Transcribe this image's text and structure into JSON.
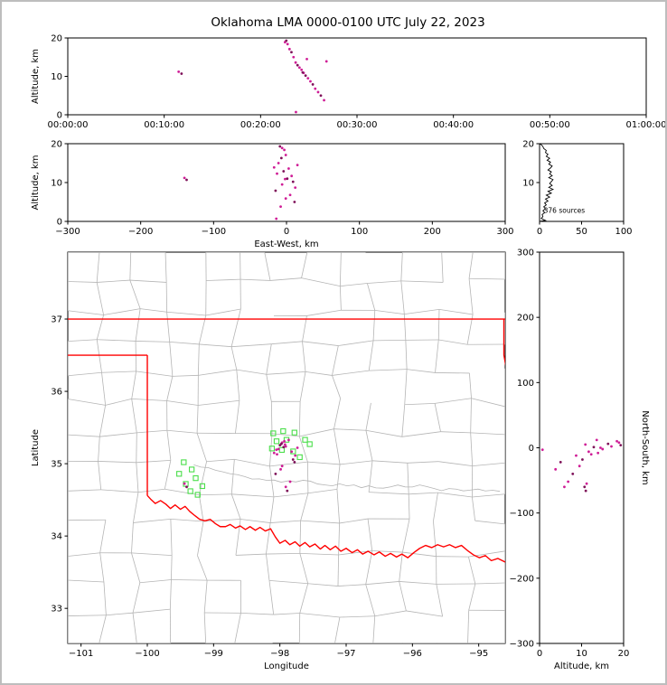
{
  "title": "Oklahoma LMA 0000-0100 UTC July 22, 2023",
  "colors": {
    "source_primary": "#cf1d96",
    "source_dark": "#7e1058",
    "station": "#4ade4a",
    "state_border": "#ff0000",
    "county_line": "#b5b5b5",
    "river_line": "#b5b5b5",
    "histogram_line": "#000000",
    "axis": "#000000",
    "figure_border": "#bdbdbd"
  },
  "chart_data": [
    {
      "id": "time_height",
      "type": "scatter",
      "xlabel": "",
      "ylabel": "Altitude, km",
      "xlim": [
        0,
        3600
      ],
      "ylim": [
        0,
        20
      ],
      "xticks": [
        {
          "v": 0,
          "l": "00:00:00"
        },
        {
          "v": 600,
          "l": "00:10:00"
        },
        {
          "v": 1200,
          "l": "00:20:00"
        },
        {
          "v": 1800,
          "l": "00:30:00"
        },
        {
          "v": 2400,
          "l": "00:40:00"
        },
        {
          "v": 3000,
          "l": "00:50:00"
        },
        {
          "v": 3600,
          "l": "01:00:00"
        }
      ],
      "yticks": [
        {
          "v": 0,
          "l": "0"
        },
        {
          "v": 10,
          "l": "10"
        },
        {
          "v": 20,
          "l": "20"
        }
      ],
      "x_field": "t",
      "y_field": "alt"
    },
    {
      "id": "ew_height",
      "type": "scatter",
      "xlabel": "East-West, km",
      "ylabel": "Altitude, km",
      "xlim": [
        -300,
        300
      ],
      "ylim": [
        0,
        20
      ],
      "xticks": [
        {
          "v": -300,
          "l": "−300"
        },
        {
          "v": -200,
          "l": "−200"
        },
        {
          "v": -100,
          "l": "−100"
        },
        {
          "v": 0,
          "l": "0"
        },
        {
          "v": 100,
          "l": "100"
        },
        {
          "v": 200,
          "l": "200"
        },
        {
          "v": 300,
          "l": "300"
        }
      ],
      "yticks": [
        {
          "v": 0,
          "l": "0"
        },
        {
          "v": 10,
          "l": "10"
        },
        {
          "v": 20,
          "l": "20"
        }
      ],
      "x_field": "ew",
      "y_field": "alt"
    },
    {
      "id": "alt_histogram",
      "type": "line",
      "xlabel": "",
      "ylabel": "",
      "xlim": [
        0,
        100
      ],
      "ylim": [
        0,
        20
      ],
      "xticks": [
        {
          "v": 0,
          "l": "0"
        },
        {
          "v": 50,
          "l": "50"
        },
        {
          "v": 100,
          "l": "100"
        }
      ],
      "yticks": [
        {
          "v": 10,
          "l": "10"
        },
        {
          "v": 20,
          "l": "20"
        }
      ],
      "bin_km": 0.5,
      "counts": [
        7,
        2,
        4,
        3,
        6,
        4,
        7,
        5,
        8,
        6,
        10,
        7,
        12,
        8,
        14,
        10,
        16,
        11,
        15,
        12,
        14,
        16,
        11,
        15,
        12,
        14,
        10,
        13,
        15,
        11,
        13,
        9,
        12,
        8,
        10,
        7,
        8,
        5,
        4,
        2
      ],
      "annotation": {
        "text": "376 sources",
        "x": 5,
        "y": 2.2
      }
    },
    {
      "id": "plan_view",
      "type": "scatter",
      "xlabel": "Longitude",
      "ylabel": "Latitude",
      "xlim": [
        -101.2,
        -94.6
      ],
      "ylim": [
        32.515,
        37.925
      ],
      "xticks": [
        {
          "v": -101,
          "l": "−101"
        },
        {
          "v": -100,
          "l": "−100"
        },
        {
          "v": -99,
          "l": "−99"
        },
        {
          "v": -98,
          "l": "−98"
        },
        {
          "v": -97,
          "l": "−97"
        },
        {
          "v": -96,
          "l": "−96"
        },
        {
          "v": -95,
          "l": "−95"
        }
      ],
      "yticks": [
        {
          "v": 33,
          "l": "33"
        },
        {
          "v": 34,
          "l": "34"
        },
        {
          "v": 35,
          "l": "35"
        },
        {
          "v": 36,
          "l": "36"
        },
        {
          "v": 37,
          "l": "37"
        }
      ],
      "network_center": {
        "lon": -97.9,
        "lat": 35.22
      },
      "km_per_deg_lon": 90.94,
      "km_per_deg_lat": 110.9
    },
    {
      "id": "ns_height",
      "type": "scatter",
      "xlabel": "Altitude, km",
      "ylabel": "North-South, km",
      "ylabel_side": "right",
      "xlim": [
        0,
        20
      ],
      "ylim": [
        -300,
        300
      ],
      "xticks": [
        {
          "v": 0,
          "l": "0"
        },
        {
          "v": 10,
          "l": "10"
        },
        {
          "v": 20,
          "l": "20"
        }
      ],
      "yticks": [
        {
          "v": 300,
          "l": "300"
        },
        {
          "v": 200,
          "l": "200"
        },
        {
          "v": 100,
          "l": "100"
        },
        {
          "v": 0,
          "l": "0"
        },
        {
          "v": -100,
          "l": "−100"
        },
        {
          "v": -200,
          "l": "−200"
        },
        {
          "v": -300,
          "l": "−300"
        }
      ],
      "x_field": "alt",
      "y_field": "ns"
    }
  ],
  "sources": [
    {
      "t": 690,
      "ew": -140,
      "ns": -55,
      "alt": 11.2,
      "c": "p"
    },
    {
      "t": 708,
      "ew": -137,
      "ns": -60,
      "alt": 10.7,
      "c": "d"
    },
    {
      "t": 1352,
      "ew": -6,
      "ns": 8,
      "alt": 18.9,
      "c": "p"
    },
    {
      "t": 1360,
      "ew": -9,
      "ns": 4,
      "alt": 19.3,
      "c": "d"
    },
    {
      "t": 1368,
      "ew": -3,
      "ns": 10,
      "alt": 18.4,
      "c": "p"
    },
    {
      "t": 1380,
      "ew": -1,
      "ns": 2,
      "alt": 17.1,
      "c": "p"
    },
    {
      "t": 1392,
      "ew": -7,
      "ns": 6,
      "alt": 16.3,
      "c": "d"
    },
    {
      "t": 1405,
      "ew": -11,
      "ns": -2,
      "alt": 15.0,
      "c": "p"
    },
    {
      "t": 1418,
      "ew": 3,
      "ns": 12,
      "alt": 13.6,
      "c": "p"
    },
    {
      "t": 1430,
      "ew": -4,
      "ns": 1,
      "alt": 12.9,
      "c": "d"
    },
    {
      "t": 1442,
      "ew": -13,
      "ns": -10,
      "alt": 12.3,
      "c": "p"
    },
    {
      "t": 1455,
      "ew": 7,
      "ns": -6,
      "alt": 11.7,
      "c": "p"
    },
    {
      "t": 1468,
      "ew": -2,
      "ns": 5,
      "alt": 10.9,
      "c": "p"
    },
    {
      "t": 1480,
      "ew": 9,
      "ns": -18,
      "alt": 10.2,
      "c": "d"
    },
    {
      "t": 1495,
      "ew": -6,
      "ns": -28,
      "alt": 9.5,
      "c": "p"
    },
    {
      "t": 1510,
      "ew": 12,
      "ns": -12,
      "alt": 8.7,
      "c": "p"
    },
    {
      "t": 1525,
      "ew": -15,
      "ns": -40,
      "alt": 7.9,
      "c": "d"
    },
    {
      "t": 1540,
      "ew": 5,
      "ns": -52,
      "alt": 6.8,
      "c": "p"
    },
    {
      "t": 1558,
      "ew": -1,
      "ns": -60,
      "alt": 5.9,
      "c": "p"
    },
    {
      "t": 1575,
      "ew": 11,
      "ns": -22,
      "alt": 5.0,
      "c": "d"
    },
    {
      "t": 1595,
      "ew": -8,
      "ns": -33,
      "alt": 3.8,
      "c": "p"
    },
    {
      "t": 1610,
      "ew": -17,
      "ns": -8,
      "alt": 13.9,
      "c": "p"
    },
    {
      "t": 1420,
      "ew": -14,
      "ns": -3,
      "alt": 0.7,
      "c": "p"
    },
    {
      "t": 1462,
      "ew": 1,
      "ns": -66,
      "alt": 11.0,
      "c": "d"
    },
    {
      "t": 1488,
      "ew": 15,
      "ns": 0,
      "alt": 14.5,
      "c": "p"
    }
  ],
  "stations": [
    [
      -99.45,
      35.02
    ],
    [
      -99.33,
      34.92
    ],
    [
      -99.52,
      34.86
    ],
    [
      -99.27,
      34.8
    ],
    [
      -99.42,
      34.72
    ],
    [
      -99.17,
      34.69
    ],
    [
      -99.35,
      34.62
    ],
    [
      -99.24,
      34.57
    ],
    [
      -98.1,
      35.42
    ],
    [
      -97.95,
      35.45
    ],
    [
      -97.78,
      35.43
    ],
    [
      -98.05,
      35.31
    ],
    [
      -97.9,
      35.33
    ],
    [
      -97.62,
      35.33
    ],
    [
      -98.12,
      35.21
    ],
    [
      -97.97,
      35.19
    ],
    [
      -97.8,
      35.17
    ],
    [
      -97.55,
      35.27
    ],
    [
      -97.7,
      35.09
    ]
  ],
  "state_border_segments": [
    [
      [
        -101.2,
        37.0
      ],
      [
        -94.6,
        37.0
      ]
    ],
    [
      [
        -94.62,
        37.0
      ],
      [
        -94.62,
        36.5
      ],
      [
        -94.45,
        35.65
      ]
    ],
    [
      [
        -101.2,
        36.5
      ],
      [
        -100.0,
        36.5
      ]
    ],
    [
      [
        -100.0,
        36.5
      ],
      [
        -100.0,
        34.56
      ]
    ],
    [
      [
        -100.0,
        34.56
      ],
      [
        -99.95,
        34.51
      ],
      [
        -99.88,
        34.45
      ],
      [
        -99.8,
        34.49
      ],
      [
        -99.72,
        34.44
      ],
      [
        -99.65,
        34.38
      ],
      [
        -99.58,
        34.43
      ],
      [
        -99.5,
        34.37
      ],
      [
        -99.43,
        34.41
      ],
      [
        -99.36,
        34.34
      ],
      [
        -99.28,
        34.28
      ],
      [
        -99.21,
        34.23
      ],
      [
        -99.13,
        34.21
      ],
      [
        -99.05,
        34.23
      ],
      [
        -98.97,
        34.17
      ],
      [
        -98.9,
        34.13
      ],
      [
        -98.82,
        34.13
      ],
      [
        -98.75,
        34.16
      ],
      [
        -98.67,
        34.11
      ],
      [
        -98.6,
        34.14
      ],
      [
        -98.52,
        34.09
      ],
      [
        -98.45,
        34.13
      ],
      [
        -98.37,
        34.08
      ],
      [
        -98.3,
        34.12
      ],
      [
        -98.22,
        34.07
      ],
      [
        -98.14,
        34.1
      ],
      [
        -98.07,
        33.99
      ],
      [
        -98.0,
        33.9
      ],
      [
        -97.92,
        33.94
      ],
      [
        -97.85,
        33.88
      ],
      [
        -97.77,
        33.92
      ],
      [
        -97.7,
        33.86
      ],
      [
        -97.62,
        33.91
      ],
      [
        -97.55,
        33.85
      ],
      [
        -97.47,
        33.89
      ],
      [
        -97.39,
        33.82
      ],
      [
        -97.32,
        33.87
      ],
      [
        -97.24,
        33.81
      ],
      [
        -97.16,
        33.86
      ],
      [
        -97.08,
        33.79
      ],
      [
        -97.0,
        33.83
      ],
      [
        -96.91,
        33.77
      ],
      [
        -96.83,
        33.81
      ],
      [
        -96.75,
        33.75
      ],
      [
        -96.67,
        33.79
      ],
      [
        -96.58,
        33.74
      ],
      [
        -96.5,
        33.78
      ],
      [
        -96.41,
        33.72
      ],
      [
        -96.33,
        33.76
      ],
      [
        -96.24,
        33.71
      ],
      [
        -96.16,
        33.75
      ],
      [
        -96.07,
        33.7
      ],
      [
        -95.98,
        33.77
      ],
      [
        -95.89,
        33.83
      ],
      [
        -95.8,
        33.87
      ],
      [
        -95.71,
        33.84
      ],
      [
        -95.62,
        33.88
      ],
      [
        -95.53,
        33.85
      ],
      [
        -95.44,
        33.88
      ],
      [
        -95.35,
        33.84
      ],
      [
        -95.26,
        33.87
      ],
      [
        -95.17,
        33.8
      ],
      [
        -95.08,
        33.74
      ],
      [
        -94.99,
        33.7
      ],
      [
        -94.9,
        33.73
      ],
      [
        -94.81,
        33.66
      ],
      [
        -94.71,
        33.69
      ],
      [
        -94.6,
        33.64
      ]
    ]
  ]
}
